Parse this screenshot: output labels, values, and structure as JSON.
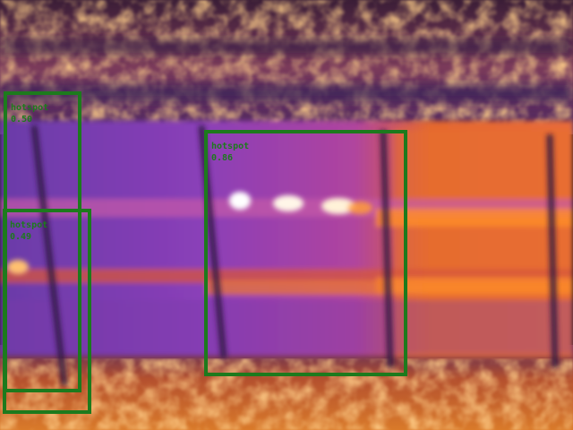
{
  "detections": [
    {
      "label": "hotspot",
      "score": "0.50"
    },
    {
      "label": "hotspot",
      "score": "0.86"
    },
    {
      "label": "hotspot",
      "score": "0.49"
    }
  ],
  "colors": {
    "box": "#1d7a1d",
    "panel": "#8a3fb8",
    "hot_stripe": "#ff8a2a",
    "ground": "#d9782a"
  }
}
